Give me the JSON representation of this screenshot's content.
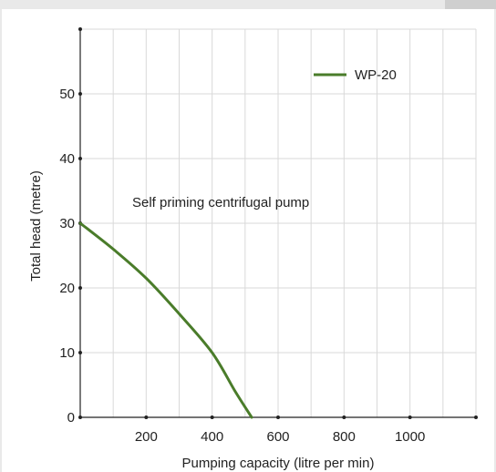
{
  "chart_data": {
    "type": "line",
    "xlabel": "Pumping capacity (litre per min)",
    "ylabel": "Total head (metre)",
    "annotation": "Self priming centrifugal pump",
    "xlim": [
      0,
      1200
    ],
    "ylim": [
      0,
      60
    ],
    "x_ticks": [
      200,
      400,
      600,
      800,
      1000
    ],
    "y_ticks": [
      0,
      10,
      20,
      30,
      40,
      50
    ],
    "grid": true,
    "legend_position": "top-right",
    "series": [
      {
        "name": "WP-20",
        "color": "#4a7c2a",
        "x": [
          0,
          100,
          200,
          300,
          400,
          470,
          520
        ],
        "y": [
          30,
          26,
          21.5,
          16,
          10,
          4,
          0
        ]
      }
    ]
  }
}
